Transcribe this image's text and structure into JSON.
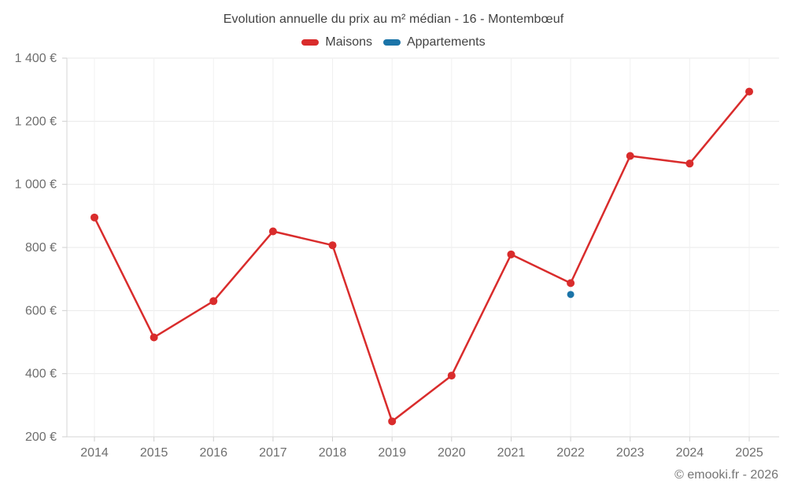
{
  "title": "Evolution annuelle du prix au m² médian - 16 - Montembœuf",
  "legend": {
    "items": [
      {
        "label": "Maisons",
        "color": "#d92c2c"
      },
      {
        "label": "Appartements",
        "color": "#1b74a8"
      }
    ]
  },
  "footer": "© emooki.fr - 2026",
  "chart_data": {
    "type": "line",
    "title": "Evolution annuelle du prix au m² médian - 16 - Montembœuf",
    "categories": [
      "2014",
      "2015",
      "2016",
      "2017",
      "2018",
      "2019",
      "2020",
      "2021",
      "2022",
      "2023",
      "2024",
      "2025"
    ],
    "series": [
      {
        "name": "Maisons",
        "color": "#d92c2c",
        "values": [
          895,
          515,
          630,
          851,
          807,
          249,
          394,
          778,
          687,
          1090,
          1066,
          1294
        ]
      },
      {
        "name": "Appartements",
        "color": "#1b74a8",
        "values": [
          null,
          null,
          null,
          null,
          null,
          null,
          null,
          null,
          651,
          null,
          null,
          null
        ]
      }
    ],
    "xlabel": "",
    "ylabel": "",
    "unit": "€",
    "ylim": [
      200,
      1400
    ],
    "ytick_step": 200,
    "ytick_labels": [
      "200 €",
      "400 €",
      "600 €",
      "800 €",
      "1 000 €",
      "1 200 €",
      "1 400 €"
    ],
    "grid": true,
    "legend_position": "top"
  },
  "colors": {
    "grid_h": "#e9e9e9",
    "grid_v": "#f0f0f0",
    "axis_border": "#d6d6d6",
    "tick": "#cfcfcf",
    "axis_label": "#6e6e6e"
  }
}
